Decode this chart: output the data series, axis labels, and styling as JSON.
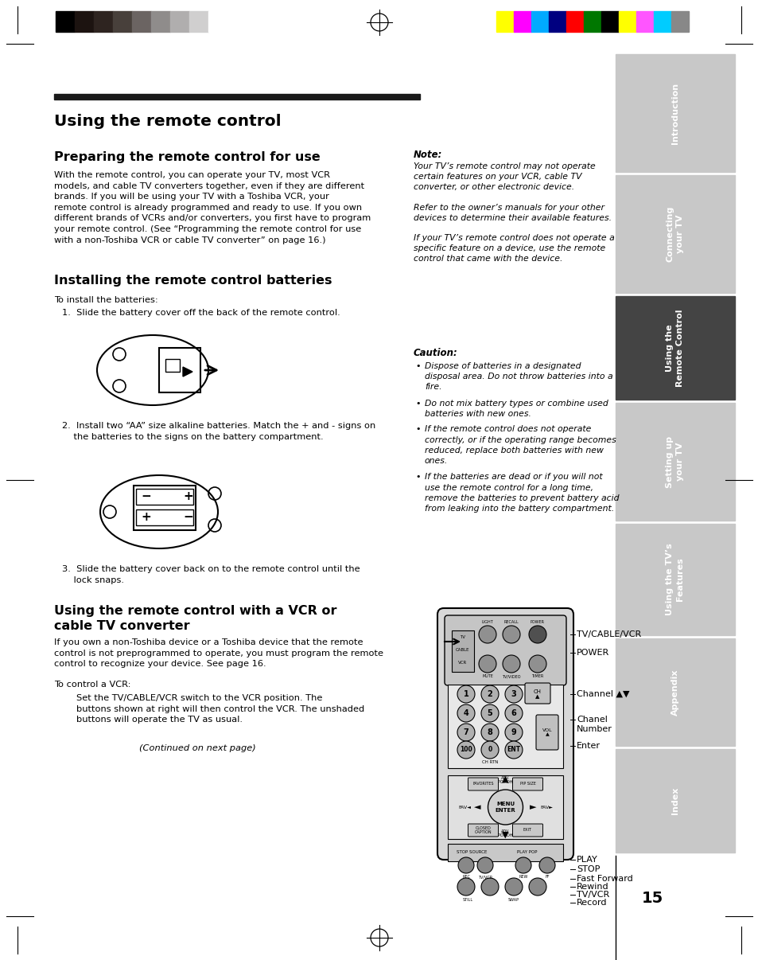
{
  "page_bg": "#ffffff",
  "sidebar_bg": "#c8c8c8",
  "sidebar_active_bg": "#444444",
  "sidebar_text_color": "#ffffff",
  "sidebar_labels": [
    "Introduction",
    "Connecting\nyour TV",
    "Using the\nRemote Control",
    "Setting up\nyour TV",
    "Using the TV’s\nFeatures",
    "Appendix",
    "Index"
  ],
  "sidebar_active_index": 2,
  "page_number": "15",
  "title_bar_color": "#1a1a1a",
  "main_title": "Using the remote control",
  "section1_title": "Preparing the remote control for use",
  "section1_body": "With the remote control, you can operate your TV, most VCR\nmodels, and cable TV converters together, even if they are different\nbrands. If you will be using your TV with a Toshiba VCR, your\nremote control is already programmed and ready to use. If you own\ndifferent brands of VCRs and/or converters, you first have to program\nyour remote control. (See “Programming the remote control for use\nwith a non-Toshiba VCR or cable TV converter” on page 16.)",
  "section2_title": "Installing the remote control batteries",
  "section2_intro": "To install the batteries:",
  "step1": "1.  Slide the battery cover off the back of the remote control.",
  "step2": "2.  Install two “AA” size alkaline batteries. Match the + and - signs on\n    the batteries to the signs on the battery compartment.",
  "step3": "3.  Slide the battery cover back on to the remote control until the\n    lock snaps.",
  "section3_title": "Using the remote control with a VCR or\ncable TV converter",
  "section3_body": "If you own a non-Toshiba device or a Toshiba device that the remote\ncontrol is not preprogrammed to operate, you must program the remote\ncontrol to recognize your device. See page 16.",
  "section3_vcr": "To control a VCR:",
  "section3_vcr_body": "Set the TV/CABLE/VCR switch to the VCR position. The\nbuttons shown at right will then control the VCR. The unshaded\nbuttons will operate the TV as usual.",
  "section3_continued": "(Continued on next page)",
  "note_title": "Note:",
  "note_body1": "Your TV’s remote control may not operate\ncertain features on your VCR, cable TV\nconverter, or other electronic device.",
  "note_body2": "Refer to the owner’s manuals for your other\ndevices to determine their available features.",
  "note_body3": "If your TV’s remote control does not operate a\nspecific feature on a device, use the remote\ncontrol that came with the device.",
  "caution_title": "Caution:",
  "caution_items": [
    "Dispose of batteries in a designated\ndisposal area. Do not throw batteries into a\nfire.",
    "Do not mix battery types or combine used\nbatteries with new ones.",
    "If the remote control does not operate\ncorrectly, or if the operating range becomes\nreduced, replace both batteries with new\nones.",
    "If the batteries are dead or if you will not\nuse the remote control for a long time,\nremove the batteries to prevent battery acid\nfrom leaking into the battery compartment."
  ],
  "colors_left": [
    "#000000",
    "#1c1310",
    "#2e2420",
    "#48403b",
    "#6b6462",
    "#8f8c8b",
    "#b0aeae",
    "#d0cfcf",
    "#ffffff"
  ],
  "colors_right": [
    "#ffff00",
    "#ff00ff",
    "#00aaff",
    "#000080",
    "#ff0000",
    "#007700",
    "#000000",
    "#ffff00",
    "#ff55ff",
    "#00ccff",
    "#888888"
  ]
}
